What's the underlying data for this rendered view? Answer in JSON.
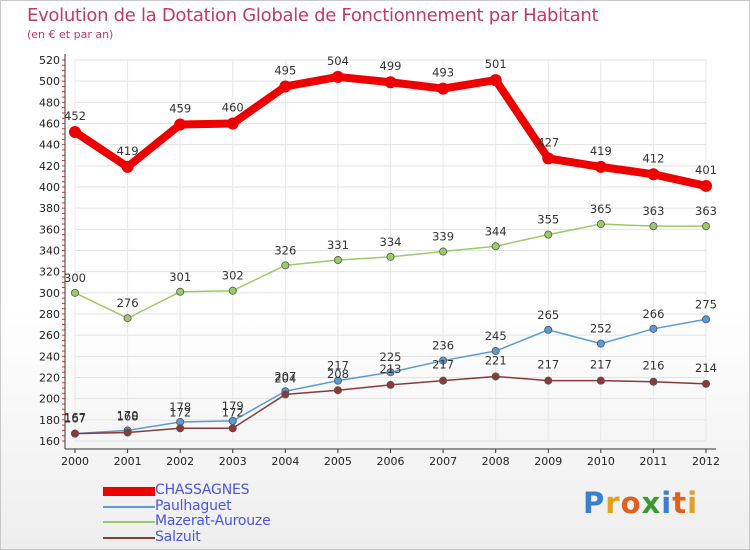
{
  "title": "Evolution de la Dotation Globale de Fonctionnement par Habitant",
  "subtitle": "(en € et par an)",
  "logo": {
    "letters": [
      "P",
      "r",
      "o",
      "x",
      "i",
      "t",
      "i"
    ],
    "colors": [
      "#3a7fd0",
      "#e0a020",
      "#e06020",
      "#3a9a30",
      "#3a7fd0",
      "#e06020",
      "#e0a020"
    ]
  },
  "chart_data": {
    "type": "line",
    "title": "Evolution de la Dotation Globale de Fonctionnement par Habitant",
    "ylabel": "(en € et par an)",
    "xlabel": "",
    "ylim": [
      160,
      520
    ],
    "yticks": [
      "160",
      "180",
      "200",
      "220",
      "240",
      "260",
      "280",
      "300",
      "320",
      "340",
      "360",
      "380",
      "400",
      "420",
      "440",
      "460",
      "480",
      "500",
      "520"
    ],
    "categories": [
      "2000",
      "2001",
      "2002",
      "2003",
      "2004",
      "2005",
      "2006",
      "2007",
      "2008",
      "2009",
      "2010",
      "2011",
      "2012"
    ],
    "series": [
      {
        "name": "CHASSAGNES",
        "color": "#ee0000",
        "values": [
          452,
          419,
          459,
          460,
          495,
          504,
          499,
          493,
          501,
          427,
          419,
          412,
          401
        ],
        "labels": [
          "452",
          "419",
          "459",
          "460",
          "495",
          "504",
          "499",
          "493",
          "501",
          "427",
          "419",
          "412",
          "401"
        ]
      },
      {
        "name": "Paulhaguet",
        "color": "#5a9bd5",
        "values": [
          167,
          170,
          178,
          179,
          207,
          217,
          225,
          236,
          245,
          265,
          252,
          266,
          275
        ],
        "labels": [
          "167",
          "170",
          "178",
          "179",
          "207",
          "217",
          "225",
          "236",
          "245",
          "265",
          "252",
          "266",
          "275"
        ]
      },
      {
        "name": "Mazerat-Aurouze",
        "color": "#99cc66",
        "values": [
          300,
          276,
          301,
          302,
          326,
          331,
          334,
          339,
          344,
          355,
          365,
          363,
          363
        ],
        "labels": [
          "300",
          "276",
          "301",
          "302",
          "326",
          "331",
          "334",
          "339",
          "344",
          "355",
          "365",
          "363",
          "363"
        ]
      },
      {
        "name": "Salzuit",
        "color": "#8b3a3a",
        "values": [
          167,
          168,
          172,
          172,
          204,
          208,
          213,
          217,
          221,
          217,
          217,
          216,
          214
        ],
        "labels": [
          "167",
          "168",
          "172",
          "172",
          "204",
          "208",
          "213",
          "217",
          "221",
          "217",
          "217",
          "216",
          "214"
        ]
      }
    ]
  }
}
